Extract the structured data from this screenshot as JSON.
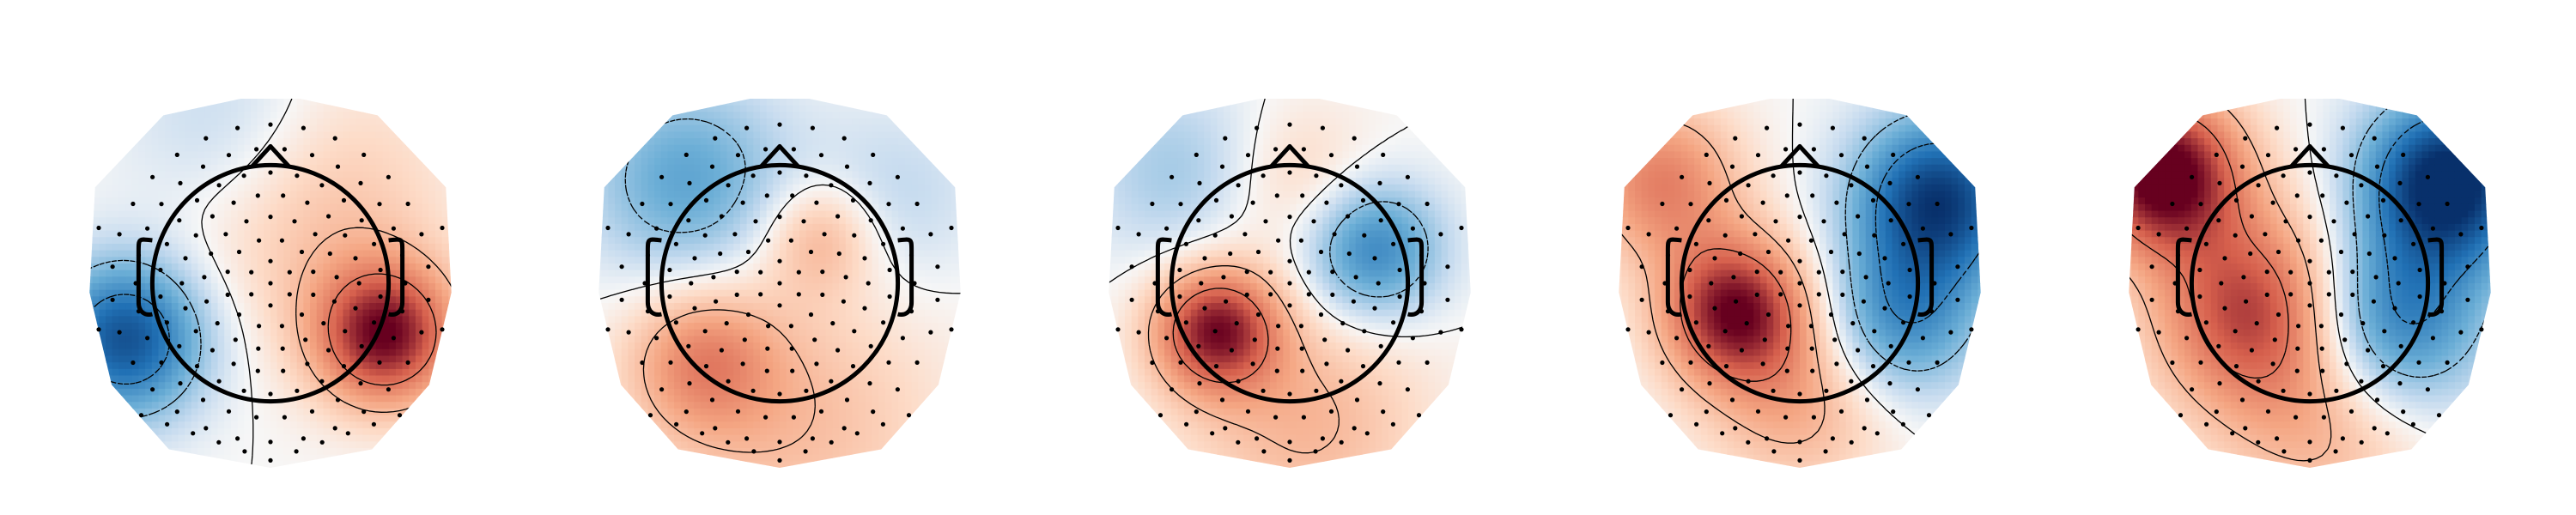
{
  "chart_data": {
    "type": "heatmap",
    "subtype": "topographic-map",
    "colormap": "diverging-blue-white-red",
    "colors": {
      "negative": "#08306b",
      "neutral": "#f7f7f7",
      "positive": "#67001f"
    },
    "contours": true,
    "grid": false,
    "legend": "none",
    "panels": [
      {
        "sources": [
          {
            "x": -0.78,
            "y": -0.3,
            "amp": -0.85,
            "w": 0.3
          },
          {
            "x": 0.62,
            "y": -0.28,
            "amp": 0.95,
            "w": 0.27
          },
          {
            "x": 0.2,
            "y": 0.45,
            "amp": 0.3,
            "w": 0.5
          },
          {
            "x": -0.2,
            "y": 0.8,
            "amp": -0.25,
            "w": 0.4
          }
        ]
      },
      {
        "sources": [
          {
            "x": -0.42,
            "y": -0.42,
            "amp": 0.45,
            "w": 0.28
          },
          {
            "x": 0.22,
            "y": 0.25,
            "amp": 0.35,
            "w": 0.22
          },
          {
            "x": -0.5,
            "y": 0.55,
            "amp": -0.45,
            "w": 0.38
          },
          {
            "x": 0.6,
            "y": 0.45,
            "amp": -0.18,
            "w": 0.35
          },
          {
            "x": 0.1,
            "y": -0.75,
            "amp": 0.28,
            "w": 0.55
          }
        ]
      },
      {
        "sources": [
          {
            "x": -0.4,
            "y": -0.25,
            "amp": 0.9,
            "w": 0.24
          },
          {
            "x": 0.45,
            "y": 0.18,
            "amp": -0.62,
            "w": 0.26
          },
          {
            "x": 0.1,
            "y": -0.75,
            "amp": 0.32,
            "w": 0.45
          },
          {
            "x": -0.6,
            "y": 0.6,
            "amp": -0.25,
            "w": 0.35
          },
          {
            "x": 0.05,
            "y": 0.55,
            "amp": 0.2,
            "w": 0.3
          }
        ]
      },
      {
        "sources": [
          {
            "x": -0.35,
            "y": -0.15,
            "amp": 0.95,
            "w": 0.28
          },
          {
            "x": -0.75,
            "y": 0.55,
            "amp": 0.55,
            "w": 0.3
          },
          {
            "x": 0.75,
            "y": 0.45,
            "amp": -0.95,
            "w": 0.32
          },
          {
            "x": 0.55,
            "y": -0.2,
            "amp": -0.55,
            "w": 0.3
          },
          {
            "x": 0.0,
            "y": -0.65,
            "amp": 0.35,
            "w": 0.35
          }
        ]
      },
      {
        "sources": [
          {
            "x": -0.8,
            "y": 0.6,
            "amp": 1.1,
            "w": 0.3
          },
          {
            "x": -0.3,
            "y": -0.15,
            "amp": 0.8,
            "w": 0.38
          },
          {
            "x": 0.75,
            "y": 0.55,
            "amp": -1.1,
            "w": 0.32
          },
          {
            "x": 0.45,
            "y": -0.2,
            "amp": -0.7,
            "w": 0.35
          },
          {
            "x": 0.1,
            "y": -0.8,
            "amp": 0.3,
            "w": 0.4
          }
        ]
      }
    ]
  }
}
